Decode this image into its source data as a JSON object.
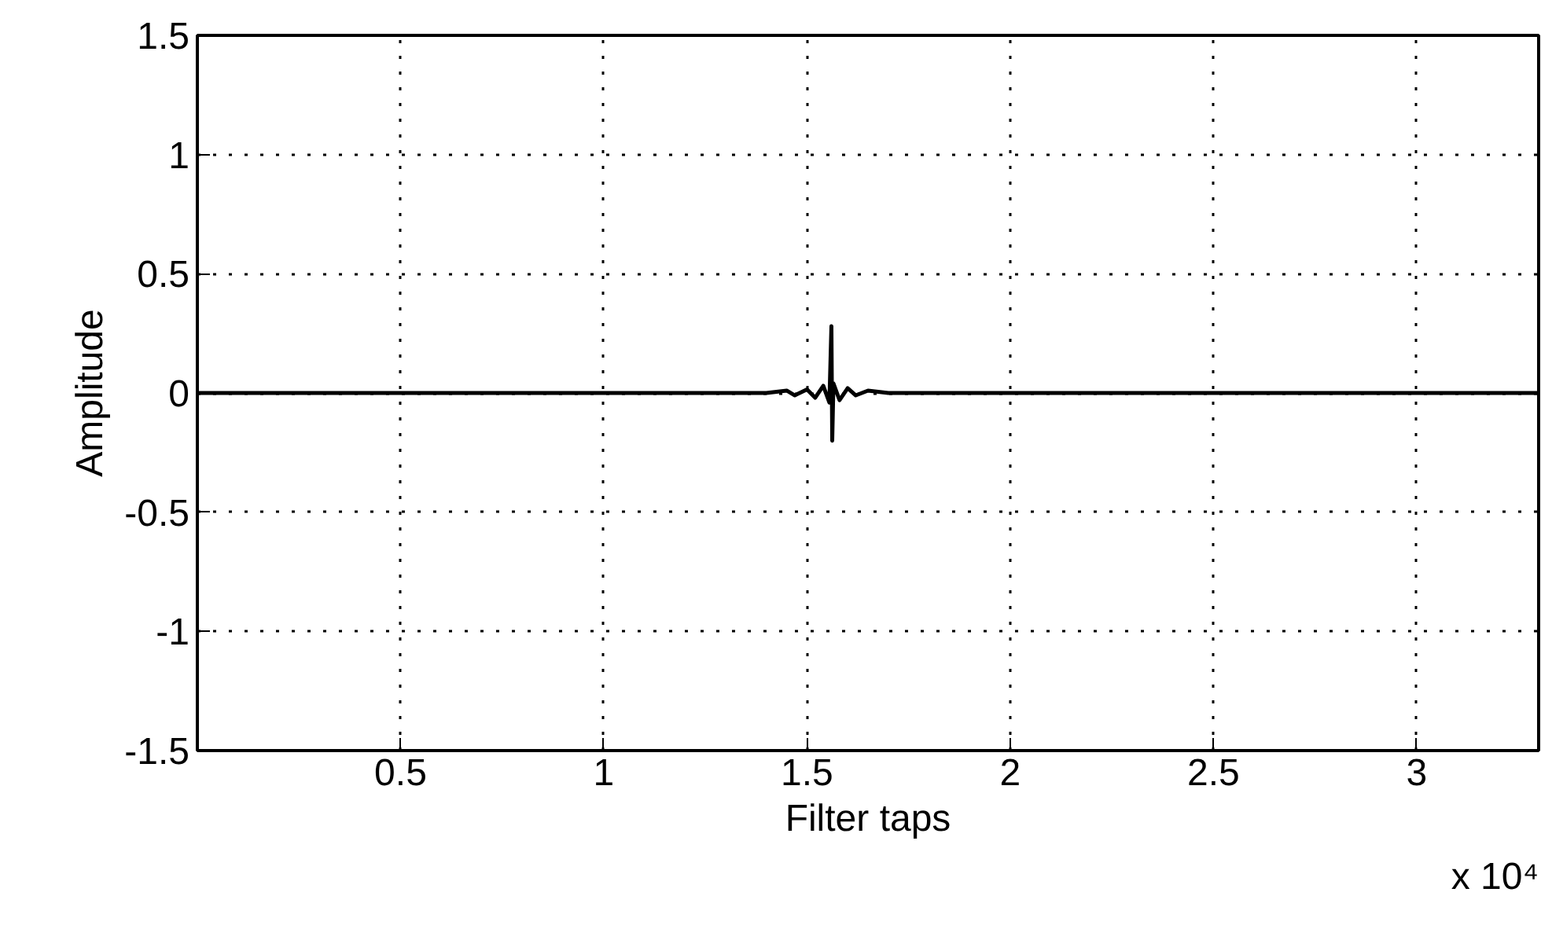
{
  "chart_data": {
    "type": "line",
    "xlabel": "Filter taps",
    "ylabel": "Amplitude",
    "x": [
      0,
      1.4,
      1.45,
      1.47,
      1.5,
      1.52,
      1.54,
      1.555,
      1.56,
      1.562,
      1.565,
      1.58,
      1.6,
      1.62,
      1.65,
      1.7,
      3.3
    ],
    "series": [
      {
        "color": "#000000",
        "values": [
          0,
          0,
          0.01,
          -0.01,
          0.015,
          -0.02,
          0.03,
          -0.04,
          0.28,
          -0.2,
          0.04,
          -0.03,
          0.02,
          -0.01,
          0.01,
          0,
          0
        ]
      }
    ],
    "xlim": [
      0,
      3.3
    ],
    "ylim": [
      -1.5,
      1.5
    ],
    "xticks": [
      0.5,
      1,
      1.5,
      2,
      2.5,
      3
    ],
    "yticks": [
      -1.5,
      -1,
      -0.5,
      0,
      0.5,
      1,
      1.5
    ],
    "grid": true,
    "line_style": "solid",
    "marker": "none",
    "annotations": [
      "x 10⁴"
    ]
  }
}
